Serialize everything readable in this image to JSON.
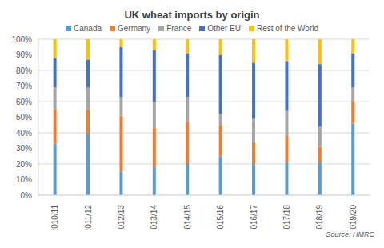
{
  "chart_data": {
    "type": "bar",
    "title": "UK wheat imports by origin",
    "source": "Source: HMRC",
    "stacked": true,
    "grid": true,
    "legend": "top",
    "categories": [
      "2010/11",
      "2011/12",
      "2012/13",
      "2013/14",
      "2014/15",
      "2015/16",
      "2016/17",
      "2017/18",
      "2018/19",
      "2019/20"
    ],
    "series": [
      {
        "name": "Canada",
        "color": "#5B9BD5",
        "values": [
          33,
          39,
          15,
          18,
          20,
          25,
          20,
          21,
          21,
          46
        ]
      },
      {
        "name": "Germany",
        "color": "#ED7D31",
        "values": [
          22,
          16,
          36,
          25,
          27,
          20,
          14,
          17,
          10,
          14
        ]
      },
      {
        "name": "France",
        "color": "#A5A5A5",
        "values": [
          14,
          14,
          12,
          17,
          16,
          7,
          15,
          16,
          13,
          9
        ]
      },
      {
        "name": "Other EU",
        "color": "#4472C4",
        "values": [
          19,
          18,
          32,
          33,
          28,
          38,
          36,
          32,
          40,
          22
        ]
      },
      {
        "name": "Rest of the World",
        "color": "#FFC000",
        "values": [
          12,
          13,
          5,
          7,
          9,
          10,
          15,
          14,
          16,
          9
        ]
      }
    ],
    "ylim": [
      0,
      100
    ],
    "yticks": [
      {
        "value": 0,
        "label": "0%"
      },
      {
        "value": 10,
        "label": "10%"
      },
      {
        "value": 20,
        "label": "20%"
      },
      {
        "value": 30,
        "label": "30%"
      },
      {
        "value": 40,
        "label": "40%"
      },
      {
        "value": 50,
        "label": "50%"
      },
      {
        "value": 60,
        "label": "60%"
      },
      {
        "value": 70,
        "label": "70%"
      },
      {
        "value": 80,
        "label": "80%"
      },
      {
        "value": 90,
        "label": "90%"
      },
      {
        "value": 100,
        "label": "100%"
      }
    ]
  }
}
